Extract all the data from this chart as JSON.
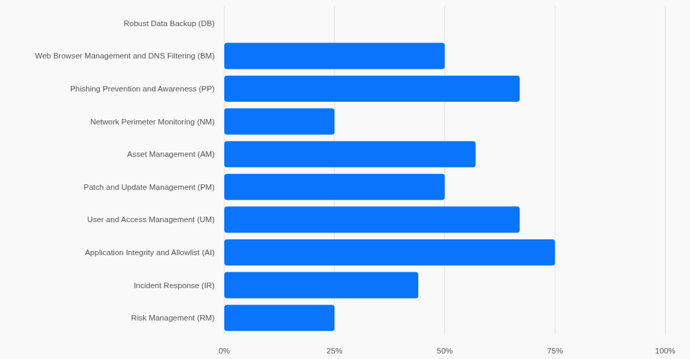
{
  "chart_data": {
    "type": "bar",
    "orientation": "horizontal",
    "categories": [
      "Robust Data Backup (DB)",
      "Web Browser Management and DNS Filtering (BM)",
      "Phishing Prevention and Awareness (PP)",
      "Network Perimeter Monitoring (NM)",
      "Asset Management (AM)",
      "Patch and Update Management (PM)",
      "User and Access Management (UM)",
      "Application Integrity and Allowlist (AI)",
      "Incident Response (IR)",
      "Risk Management (RM)"
    ],
    "values": [
      0,
      50,
      67,
      25,
      57,
      50,
      67,
      75,
      44,
      25
    ],
    "color": "#0a75fa",
    "xlim": [
      0,
      100
    ],
    "xticks": [
      {
        "value": 0,
        "label": "0%"
      },
      {
        "value": 25,
        "label": "25%"
      },
      {
        "value": 50,
        "label": "50%"
      },
      {
        "value": 75,
        "label": "75%"
      },
      {
        "value": 100,
        "label": "100%"
      }
    ],
    "grid": "x"
  }
}
